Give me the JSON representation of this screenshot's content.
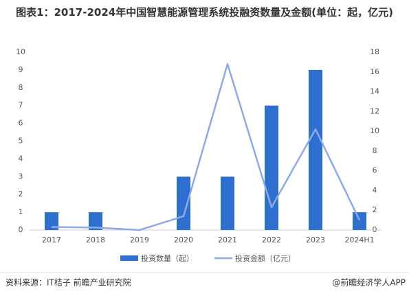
{
  "chart_data": {
    "type": "bar",
    "title": "图表1：2017-2024年中国智慧能源管理系统投融资数量及金额(单位：起，亿元)",
    "categories": [
      "2017",
      "2018",
      "2019",
      "2020",
      "2021",
      "2022",
      "2023",
      "2024H1"
    ],
    "series": [
      {
        "name": "投资数量（起）",
        "color": "#2f6fd1",
        "values": [
          1,
          1,
          0,
          3,
          3,
          7,
          9,
          1
        ]
      },
      {
        "name": "投资金额（亿元）",
        "color": "#8caae6",
        "type": "line",
        "axis": "y2",
        "values": [
          0.3,
          0.25,
          0,
          1.4,
          16.8,
          2.3,
          10.2,
          1.0
        ]
      }
    ],
    "ylim": [
      0,
      10
    ],
    "yticks": [
      0,
      1,
      2,
      3,
      4,
      5,
      6,
      7,
      8,
      9,
      10
    ],
    "y2lim": [
      0,
      18
    ],
    "y2ticks": [
      0,
      2,
      4,
      6,
      8,
      10,
      12,
      14,
      16,
      18
    ],
    "grid": false,
    "legend": "bottom",
    "source": "资料来源：IT桔子 前瞻产业研究院",
    "credit": "@前瞻经济学人APP"
  }
}
